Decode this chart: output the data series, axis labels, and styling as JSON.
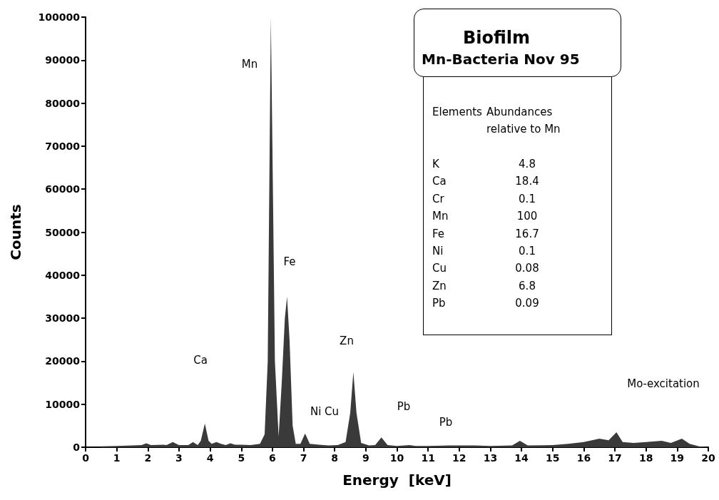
{
  "chart_data": {
    "type": "area",
    "title": "Biofilm",
    "subtitle": "Mn-Bacteria Nov 95",
    "xlabel": "Energy  [keV]",
    "ylabel": "Counts",
    "x": [
      0.5,
      1.0,
      1.5,
      1.8,
      1.95,
      2.1,
      2.5,
      2.6,
      2.8,
      3.0,
      3.3,
      3.45,
      3.6,
      3.7,
      3.83,
      3.95,
      4.05,
      4.2,
      4.35,
      4.5,
      4.65,
      4.8,
      5.0,
      5.3,
      5.6,
      5.75,
      5.85,
      5.9,
      5.95,
      6.0,
      6.08,
      6.2,
      6.3,
      6.4,
      6.47,
      6.55,
      6.65,
      6.75,
      6.9,
      7.05,
      7.2,
      7.5,
      7.8,
      8.1,
      8.35,
      8.5,
      8.6,
      8.7,
      8.85,
      9.1,
      9.3,
      9.5,
      9.7,
      10.0,
      10.4,
      10.6,
      11.0,
      11.7,
      12.5,
      13.0,
      13.7,
      13.95,
      14.2,
      15.0,
      15.5,
      16.0,
      16.5,
      16.8,
      17.05,
      17.25,
      17.6,
      18.0,
      18.5,
      18.8,
      19.15,
      19.4,
      19.7,
      20.0
    ],
    "values": [
      200,
      300,
      400,
      500,
      900,
      500,
      600,
      500,
      1200,
      500,
      500,
      1200,
      500,
      1500,
      5500,
      1500,
      800,
      1200,
      800,
      500,
      900,
      600,
      600,
      500,
      800,
      3000,
      20000,
      60000,
      100000,
      70000,
      20000,
      2500,
      15000,
      30000,
      35000,
      25000,
      5000,
      800,
      800,
      3200,
      800,
      600,
      400,
      500,
      1200,
      8000,
      17500,
      8000,
      1000,
      400,
      500,
      2300,
      500,
      300,
      500,
      300,
      300,
      400,
      400,
      300,
      400,
      1500,
      400,
      500,
      800,
      1200,
      2000,
      1600,
      3500,
      1200,
      1000,
      1200,
      1500,
      1000,
      2000,
      800,
      200,
      0
    ],
    "color": "#3a3a3a",
    "xlim": [
      0,
      20
    ],
    "xticks": [
      0,
      1,
      2,
      3,
      4,
      5,
      6,
      7,
      8,
      9,
      10,
      11,
      12,
      13,
      14,
      15,
      16,
      17,
      18,
      19,
      20
    ],
    "ylim": [
      0,
      100000
    ],
    "yticks": [
      0,
      10000,
      20000,
      30000,
      40000,
      50000,
      60000,
      70000,
      80000,
      90000,
      100000
    ],
    "grid": false,
    "annotations": [
      "Mn",
      "Fe",
      "Ca",
      "Ni Cu",
      "Zn",
      "Pb",
      "Pb",
      "Mo-excitation",
      "Elements",
      "Abundances\nrelative to Mn",
      "K",
      "4.8",
      "Ca",
      "18.4",
      "Cr",
      "0.1",
      "Mn",
      "100",
      "Fe",
      "16.7",
      "Ni",
      "0.1",
      "Cu",
      "0.08",
      "Zn",
      "6.8",
      "Pb",
      "0.09"
    ]
  }
}
